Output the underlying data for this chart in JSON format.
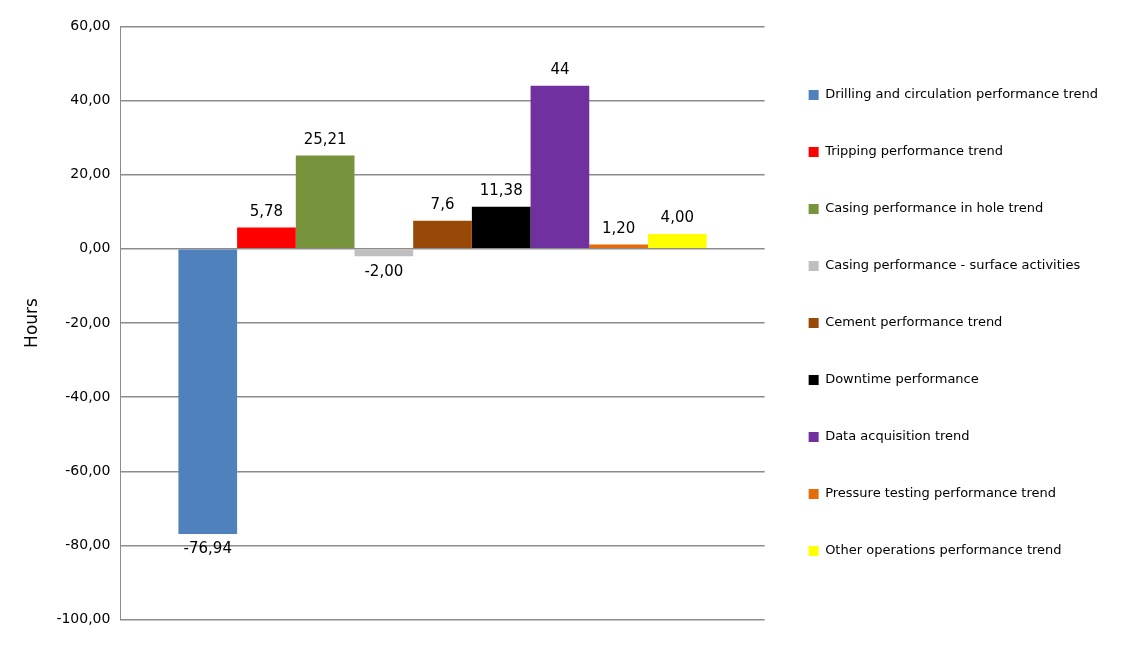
{
  "chart_data": {
    "type": "bar",
    "ylabel": "Hours",
    "categories": [
      null
    ],
    "ylim": [
      -100,
      60
    ],
    "yticks": [
      {
        "value": -100,
        "label": "-100,00"
      },
      {
        "value": -80,
        "label": "-80,00"
      },
      {
        "value": -60,
        "label": "-60,00"
      },
      {
        "value": -40,
        "label": "-40,00"
      },
      {
        "value": -20,
        "label": "-20,00"
      },
      {
        "value": 0,
        "label": "0,00"
      },
      {
        "value": 20,
        "label": "20,00"
      },
      {
        "value": 40,
        "label": "40,00"
      },
      {
        "value": 60,
        "label": "60,00"
      }
    ],
    "grid": "y",
    "legend": "right",
    "tick_labels": "y",
    "series": [
      {
        "name": "Drilling and circulation performance trend",
        "color": "#4f81bd",
        "values": [
          -76.94
        ],
        "value_labels": [
          "-76,94"
        ]
      },
      {
        "name": "Tripping performance trend",
        "color": "#ff0000",
        "values": [
          5.78
        ],
        "value_labels": [
          "5,78"
        ]
      },
      {
        "name": "Casing performance in hole trend",
        "color": "#77933c",
        "values": [
          25.21
        ],
        "value_labels": [
          "25,21"
        ]
      },
      {
        "name": "Casing performance - surface activities",
        "color": "#bfbfbf",
        "values": [
          -2
        ],
        "value_labels": [
          "-2,00"
        ]
      },
      {
        "name": "Cement performance trend",
        "color": "#984807",
        "values": [
          7.6
        ],
        "value_labels": [
          "7,6"
        ]
      },
      {
        "name": "Downtime performance",
        "color": "#000000",
        "values": [
          11.38
        ],
        "value_labels": [
          "11,38"
        ]
      },
      {
        "name": "Data acquisition trend",
        "color": "#7030a0",
        "values": [
          44
        ],
        "value_labels": [
          "44"
        ]
      },
      {
        "name": "Pressure testing performance trend",
        "color": "#e46c0a",
        "values": [
          1.2
        ],
        "value_labels": [
          "1,20"
        ]
      },
      {
        "name": "Other operations performance trend",
        "color": "#ffff00",
        "values": [
          4
        ],
        "value_labels": [
          "4,00"
        ]
      }
    ]
  }
}
